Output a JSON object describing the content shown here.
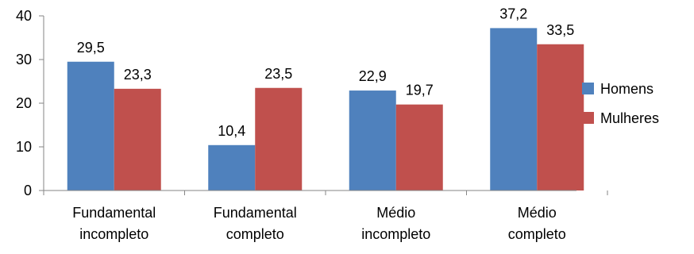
{
  "chart_data": {
    "type": "bar",
    "title": "",
    "xlabel": "",
    "ylabel": "",
    "ylim": [
      0,
      40
    ],
    "yticks": [
      0,
      10,
      20,
      30,
      40
    ],
    "grid": false,
    "legend_position": "right",
    "categories": [
      [
        "Fundamental",
        "incompleto"
      ],
      [
        "Fundamental",
        "completo"
      ],
      [
        "Médio",
        "incompleto"
      ],
      [
        "Médio",
        "completo"
      ]
    ],
    "series": [
      {
        "name": "Homens",
        "color": "#4F81BD",
        "values": [
          29.5,
          10.4,
          22.9,
          37.2
        ],
        "labels": [
          "29,5",
          "10,4",
          "22,9",
          "37,2"
        ]
      },
      {
        "name": "Mulheres",
        "color": "#C0504D",
        "values": [
          23.3,
          23.5,
          19.7,
          33.5
        ],
        "labels": [
          "23,3",
          "23,5",
          "19,7",
          "33,5"
        ]
      }
    ]
  }
}
